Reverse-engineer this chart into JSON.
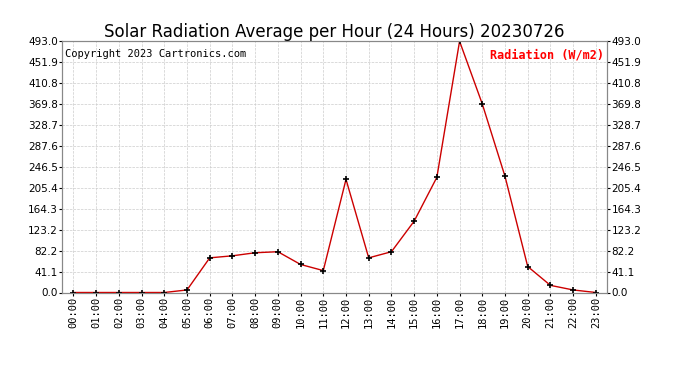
{
  "title": "Solar Radiation Average per Hour (24 Hours) 20230726",
  "copyright_text": "Copyright 2023 Cartronics.com",
  "ylabel": "Radiation (W/m2)",
  "ylabel_color": "#ff0000",
  "copyright_color": "#000000",
  "line_color": "#cc0000",
  "marker_color": "#000000",
  "background_color": "#ffffff",
  "grid_color": "#cccccc",
  "hours": [
    "00:00",
    "01:00",
    "02:00",
    "03:00",
    "04:00",
    "05:00",
    "06:00",
    "07:00",
    "08:00",
    "09:00",
    "10:00",
    "11:00",
    "12:00",
    "13:00",
    "14:00",
    "15:00",
    "16:00",
    "17:00",
    "18:00",
    "19:00",
    "20:00",
    "21:00",
    "22:00",
    "23:00"
  ],
  "values": [
    0.0,
    0.0,
    0.0,
    0.0,
    0.0,
    5.0,
    68.0,
    72.0,
    78.0,
    80.0,
    55.0,
    43.0,
    222.0,
    68.0,
    80.0,
    140.0,
    226.0,
    493.0,
    370.0,
    228.0,
    51.0,
    14.0,
    5.0,
    0.0
  ],
  "yticks": [
    0.0,
    41.1,
    82.2,
    123.2,
    164.3,
    205.4,
    246.5,
    287.6,
    328.7,
    369.8,
    410.8,
    451.9,
    493.0
  ],
  "ymax": 493.0,
  "ymin": 0.0,
  "title_fontsize": 12,
  "axis_fontsize": 7.5,
  "copyright_fontsize": 7.5,
  "ylabel_fontsize": 8.5
}
